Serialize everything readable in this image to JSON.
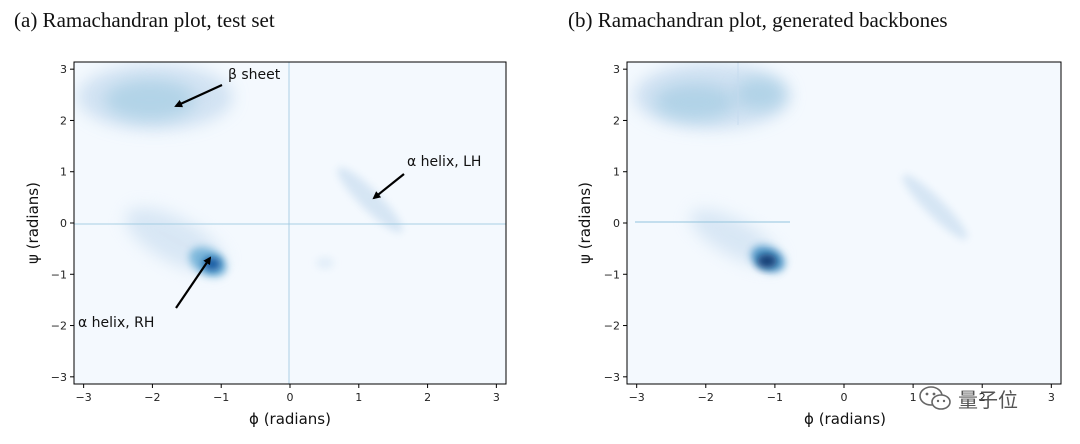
{
  "titles": {
    "a": "(a) Ramachandran plot, test set",
    "b": "(b) Ramachandran plot, generated backbones"
  },
  "annotations": {
    "beta_sheet": "β sheet",
    "alpha_lh": "α helix, LH",
    "alpha_rh": "α helix, RH"
  },
  "watermark": {
    "text": "量子位",
    "icon": "wechat-icon"
  },
  "chart_data": [
    {
      "type": "heatmap",
      "title": "(a) Ramachandran plot, test set",
      "xlabel": "ϕ (radians)",
      "ylabel": "ψ (radians)",
      "xlim": [
        -3.14,
        3.14
      ],
      "ylim": [
        -3.14,
        3.14
      ],
      "xticks": [
        -3,
        -2,
        -1,
        0,
        1,
        2,
        3
      ],
      "yticks": [
        -3,
        -2,
        -1,
        0,
        1,
        2,
        3
      ],
      "colormap": "Blues",
      "grid": false,
      "regions": [
        {
          "name": "beta sheet",
          "phi": -2.0,
          "psi": 2.4,
          "intensity": 0.45
        },
        {
          "name": "alpha helix RH",
          "phi": -1.15,
          "psi": -0.75,
          "intensity": 1.0
        },
        {
          "name": "alpha helix LH",
          "phi": 1.1,
          "psi": 0.45,
          "intensity": 0.25
        }
      ],
      "annotations": [
        {
          "text": "β sheet",
          "point": [
            -1.6,
            2.3
          ]
        },
        {
          "text": "α helix, LH",
          "point": [
            1.2,
            0.5
          ]
        },
        {
          "text": "α helix, RH",
          "point": [
            -1.1,
            -0.65
          ]
        }
      ]
    },
    {
      "type": "heatmap",
      "title": "(b) Ramachandran plot, generated backbones",
      "xlabel": "ϕ (radians)",
      "ylabel": "ψ (radians)",
      "xlim": [
        -3.14,
        3.14
      ],
      "ylim": [
        -3.14,
        3.14
      ],
      "xticks": [
        -3,
        -2,
        -1,
        0,
        1,
        2,
        3
      ],
      "yticks": [
        -3,
        -2,
        -1,
        0,
        1,
        2,
        3
      ],
      "colormap": "Blues",
      "grid": false,
      "regions": [
        {
          "name": "beta sheet",
          "phi": -1.8,
          "psi": 2.4,
          "intensity": 0.5
        },
        {
          "name": "alpha helix RH",
          "phi": -1.05,
          "psi": -0.7,
          "intensity": 1.0
        },
        {
          "name": "alpha helix LH",
          "phi": 1.1,
          "psi": 0.3,
          "intensity": 0.25
        }
      ]
    }
  ],
  "colors": {
    "background": "#f4f9fe",
    "light": "#c6dbef",
    "medium": "#6aaed6",
    "dark": "#08519c",
    "darkest": "#08306b"
  }
}
